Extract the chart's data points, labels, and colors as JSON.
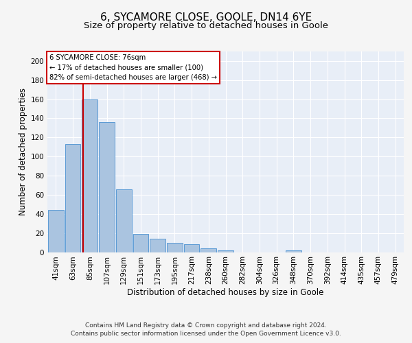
{
  "title": "6, SYCAMORE CLOSE, GOOLE, DN14 6YE",
  "subtitle": "Size of property relative to detached houses in Goole",
  "xlabel": "Distribution of detached houses by size in Goole",
  "ylabel": "Number of detached properties",
  "categories": [
    "41sqm",
    "63sqm",
    "85sqm",
    "107sqm",
    "129sqm",
    "151sqm",
    "173sqm",
    "195sqm",
    "217sqm",
    "238sqm",
    "260sqm",
    "282sqm",
    "304sqm",
    "326sqm",
    "348sqm",
    "370sqm",
    "392sqm",
    "414sqm",
    "435sqm",
    "457sqm",
    "479sqm"
  ],
  "values": [
    44,
    113,
    160,
    136,
    66,
    19,
    14,
    10,
    8,
    4,
    2,
    0,
    0,
    0,
    2,
    0,
    0,
    0,
    0,
    0,
    0
  ],
  "bar_color": "#aac4e0",
  "bar_edge_color": "#5b9bd5",
  "background_color": "#e8eef7",
  "grid_color": "#ffffff",
  "annotation_text": "6 SYCAMORE CLOSE: 76sqm\n← 17% of detached houses are smaller (100)\n82% of semi-detached houses are larger (468) →",
  "annotation_box_color": "#ffffff",
  "annotation_border_color": "#cc0000",
  "ylim": [
    0,
    210
  ],
  "yticks": [
    0,
    20,
    40,
    60,
    80,
    100,
    120,
    140,
    160,
    180,
    200
  ],
  "footer": "Contains HM Land Registry data © Crown copyright and database right 2024.\nContains public sector information licensed under the Open Government Licence v3.0.",
  "title_fontsize": 11,
  "subtitle_fontsize": 9.5,
  "axis_fontsize": 8.5,
  "tick_fontsize": 7.5,
  "footer_fontsize": 6.5
}
